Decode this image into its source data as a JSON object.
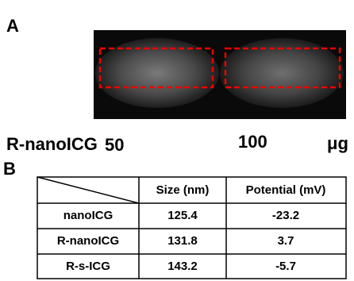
{
  "panel_a": {
    "label": "A",
    "sample_label": "R-nanoICG",
    "doses": [
      "50",
      "100"
    ],
    "unit": "μg"
  },
  "panel_b": {
    "label": "B",
    "table": {
      "header": [
        "Size (nm)",
        "Potential (mV)"
      ],
      "rows": [
        [
          "nanoICG",
          "125.4",
          "-23.2"
        ],
        [
          "R-nanoICG",
          "131.8",
          "3.7"
        ],
        [
          "R-s-ICG",
          "143.2",
          "-5.7"
        ]
      ]
    }
  }
}
